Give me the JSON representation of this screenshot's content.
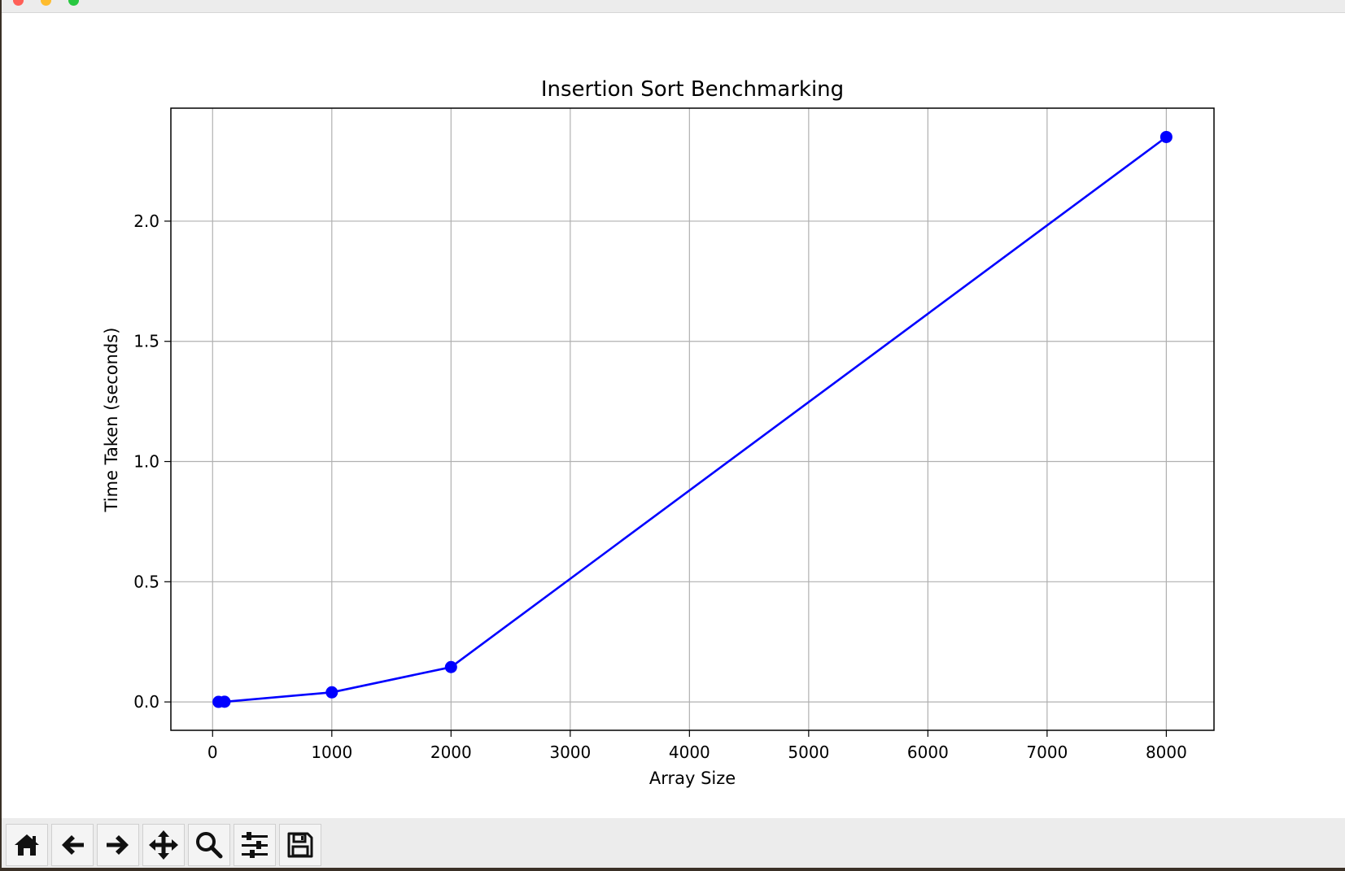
{
  "window": {
    "traffic_lights": {
      "close": "#ff5f57",
      "minimize": "#febc2e",
      "zoom": "#28c840"
    }
  },
  "toolbar": {
    "buttons": [
      {
        "icon": "home-icon"
      },
      {
        "icon": "back-arrow-icon"
      },
      {
        "icon": "forward-arrow-icon"
      },
      {
        "icon": "pan-icon"
      },
      {
        "icon": "zoom-icon"
      },
      {
        "icon": "configure-subplots-icon"
      },
      {
        "icon": "save-icon"
      }
    ]
  },
  "chart_data": {
    "type": "line",
    "title": "Insertion Sort Benchmarking",
    "xlabel": "Array Size",
    "ylabel": "Time Taken (seconds)",
    "xlim": [
      -350,
      8400
    ],
    "ylim": [
      -0.118,
      2.47
    ],
    "xticks": [
      0,
      1000,
      2000,
      3000,
      4000,
      5000,
      6000,
      7000,
      8000
    ],
    "xtick_labels": [
      "0",
      "1000",
      "2000",
      "3000",
      "4000",
      "5000",
      "6000",
      "7000",
      "8000"
    ],
    "yticks": [
      0.0,
      0.5,
      1.0,
      1.5,
      2.0
    ],
    "ytick_labels": [
      "0.0",
      "0.5",
      "1.0",
      "1.5",
      "2.0"
    ],
    "grid": true,
    "series": [
      {
        "color": "#0000ff",
        "marker": "o",
        "x": [
          50,
          100,
          1000,
          2000,
          8000
        ],
        "y": [
          0.0002,
          0.0008,
          0.04,
          0.145,
          2.35
        ]
      }
    ]
  }
}
